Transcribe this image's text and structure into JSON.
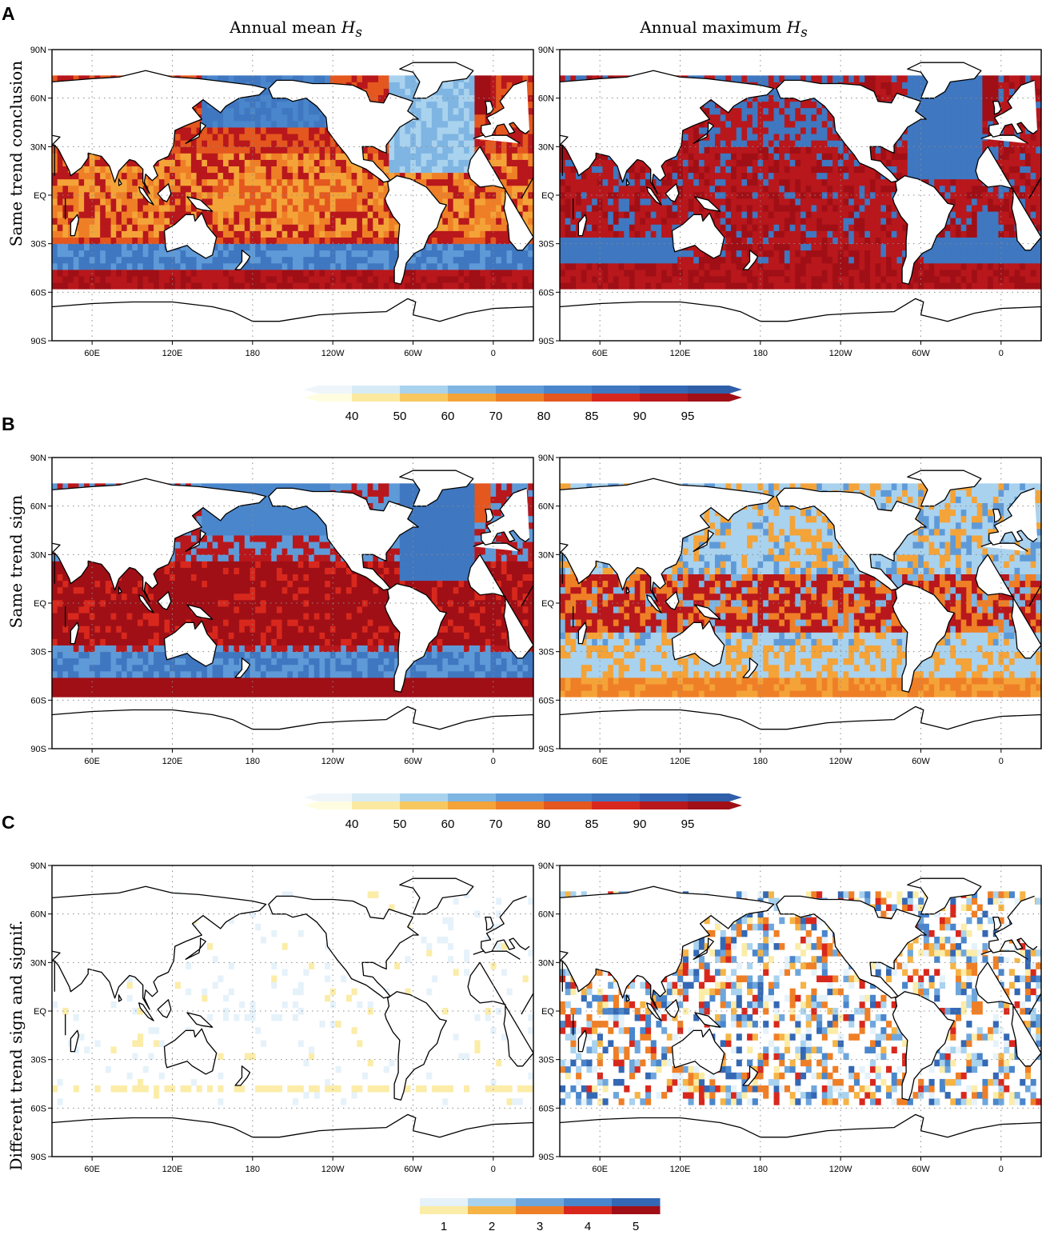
{
  "panels": {
    "A": {
      "letter": "A",
      "row_label": "Same trend conclusion"
    },
    "B": {
      "letter": "B",
      "row_label": "Same trend sign"
    },
    "C": {
      "letter": "C",
      "row_label": "Different trend sign and signif."
    }
  },
  "columns": {
    "left": {
      "title": "Annual mean ",
      "var": "H",
      "sub": "s"
    },
    "right": {
      "title": "Annual maximum ",
      "var": "H",
      "sub": "s"
    }
  },
  "axes": {
    "lat_ticks": [
      "90N",
      "60N",
      "30N",
      "EQ",
      "30S",
      "60S",
      "90S"
    ],
    "lon_ticks": [
      "60E",
      "120E",
      "180",
      "120W",
      "60W",
      "0"
    ],
    "lon_tick_values": [
      60,
      120,
      180,
      240,
      300,
      360
    ],
    "lon_range": [
      30,
      390
    ]
  },
  "colorbar_main": {
    "ticks": [
      "40",
      "50",
      "60",
      "70",
      "80",
      "85",
      "90",
      "95"
    ],
    "blue_colors": [
      "#eef6fb",
      "#d6ebf6",
      "#a9d2ee",
      "#7fb5e2",
      "#5f9ad8",
      "#4a86cc",
      "#3f77c0",
      "#3468b4",
      "#2f5fa8"
    ],
    "warm_colors": [
      "#fffde0",
      "#fbe9a0",
      "#f8c860",
      "#f4a338",
      "#ef7f26",
      "#e4571e",
      "#d8281d",
      "#b8171c",
      "#a00f16"
    ]
  },
  "colorbar_c": {
    "ticks": [
      "1",
      "2",
      "3",
      "4",
      "5"
    ],
    "blue_colors": [
      "#e6f2fa",
      "#a9d2ee",
      "#6ea6dc",
      "#4a86cc",
      "#3468b4"
    ],
    "warm_colors": [
      "#fbeca8",
      "#f5b445",
      "#ef7f26",
      "#d8281d",
      "#a00f16"
    ]
  },
  "colors": {
    "land_outline": "#000000",
    "grid": "#8c8c8c"
  }
}
